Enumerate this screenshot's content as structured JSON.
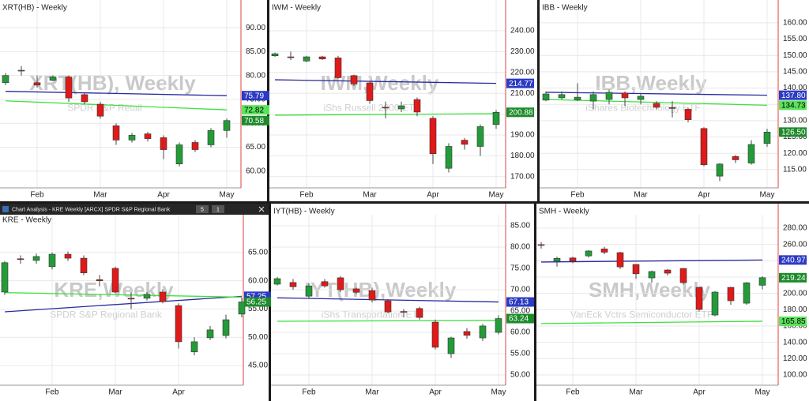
{
  "window": {
    "title": "Chart Analysis - KRE Weekly [ARCX] SPDR S&P Regional Bank",
    "buttons": [
      "5",
      "1"
    ]
  },
  "chart_data": [
    {
      "type": "candlestick",
      "title": "XRT(HB) - Weekly",
      "watermark": "XRT(HB), Weekly",
      "subtitle": "SPDR S&P Retail",
      "categories": [
        null,
        null,
        "Feb",
        null,
        null,
        null,
        "Mar",
        null,
        null,
        null,
        "Apr",
        null,
        null,
        null,
        "May"
      ],
      "open": [
        78.5,
        81,
        78.5,
        79,
        79.7,
        76,
        74,
        69.5,
        66.5,
        67.8,
        67,
        61.5,
        66,
        65.5,
        68.5
      ],
      "high": [
        80.5,
        82,
        80,
        80,
        80,
        76.5,
        74.5,
        70,
        68,
        68.2,
        67.5,
        66,
        66.5,
        69,
        71
      ],
      "low": [
        78,
        80,
        77.5,
        78.8,
        74.5,
        74,
        71,
        65.5,
        66,
        66.2,
        62.5,
        61,
        64,
        65,
        67
      ],
      "close": [
        80,
        81.1,
        78,
        79.7,
        75.3,
        74.5,
        71.5,
        66.5,
        67.5,
        66.8,
        64.5,
        65.5,
        64.5,
        68.5,
        70.58
      ],
      "up_color": "#239b38",
      "down_color": "#e01919",
      "lines": [
        {
          "color": "#2a2aa0",
          "x": [
            0,
            14
          ],
          "values": [
            76.7,
            75.79
          ]
        },
        {
          "color": "#3ee03e",
          "x": [
            0,
            14
          ],
          "values": [
            74.7,
            72.82
          ]
        }
      ],
      "tags": [
        {
          "value": 75.79,
          "label": "75.79",
          "color": "#2b3bc4",
          "text_color": "#ffffff"
        },
        {
          "value": 72.82,
          "label": "72.82",
          "color": "#5be35b",
          "text_color": "#000000"
        },
        {
          "value": 70.58,
          "label": "70.58",
          "color": "#1d8a2b",
          "text_color": "#ffffff"
        }
      ],
      "ylim": [
        56.5,
        95.8
      ],
      "yticks": [
        {
          "value": 90,
          "label": "90.00"
        },
        {
          "value": 85,
          "label": "85.00"
        },
        {
          "value": 80,
          "label": "80.00"
        },
        {
          "value": 75,
          "label": "75.00"
        },
        {
          "value": 70,
          "label": "70.00"
        },
        {
          "value": 65,
          "label": "65.00"
        },
        {
          "value": 60,
          "label": "60.00"
        }
      ],
      "grid": true
    },
    {
      "type": "candlestick",
      "title": "IWM - Weekly",
      "watermark": "IWM,Weekly",
      "subtitle": "iShs Russell 2000 ETF",
      "categories": [
        null,
        null,
        "Feb",
        null,
        null,
        null,
        "Mar",
        null,
        null,
        null,
        "Apr",
        null,
        null,
        null,
        "May"
      ],
      "open": [
        228,
        227.5,
        225.5,
        227.5,
        227,
        218.5,
        215,
        203.3,
        202.5,
        207,
        198,
        174,
        187.5,
        184.5,
        195
      ],
      "high": [
        229.5,
        230,
        228,
        228,
        228,
        219,
        216,
        206,
        206,
        208,
        199,
        186,
        188.5,
        195,
        202
      ],
      "low": [
        227.5,
        226,
        225,
        226,
        217,
        213.5,
        205,
        198,
        201,
        199,
        176,
        172,
        183,
        180,
        193
      ],
      "close": [
        229,
        227.3,
        227.5,
        226.5,
        217.5,
        214.5,
        206.5,
        203,
        204,
        201,
        181,
        184.5,
        185.5,
        194,
        200.88
      ],
      "up_color": "#239b38",
      "down_color": "#e01919",
      "lines": [
        {
          "color": "#2a2aa0",
          "x": [
            0,
            14
          ],
          "values": [
            216.5,
            214.77
          ]
        },
        {
          "color": "#3ee03e",
          "x": [
            0,
            14
          ],
          "values": [
            199.5,
            200.2
          ]
        }
      ],
      "tags": [
        {
          "value": 214.77,
          "label": "214.77",
          "color": "#2b3bc4",
          "text_color": "#ffffff"
        },
        {
          "value": 200.88,
          "label": "200.88",
          "color": "#1d8a2b",
          "text_color": "#ffffff"
        }
      ],
      "ylim": [
        164.6,
        254.8
      ],
      "yticks": [
        {
          "value": 240,
          "label": "240.00"
        },
        {
          "value": 230,
          "label": "230.00"
        },
        {
          "value": 220,
          "label": "220.00"
        },
        {
          "value": 210,
          "label": "210.00"
        },
        {
          "value": 200,
          "label": "200.00"
        },
        {
          "value": 190,
          "label": "190.00"
        },
        {
          "value": 180,
          "label": "180.00"
        },
        {
          "value": 170,
          "label": "170.00"
        }
      ],
      "grid": true
    },
    {
      "type": "candlestick",
      "title": "IBB - Weekly",
      "watermark": "IBB,Weekly",
      "subtitle": "iShares Biotechnology ETF",
      "categories": [
        null,
        null,
        "Feb",
        null,
        null,
        null,
        "Mar",
        null,
        null,
        null,
        "Apr",
        null,
        null,
        null,
        "May"
      ],
      "open": [
        136.3,
        137,
        136.4,
        136,
        136.5,
        138.5,
        136.5,
        135.3,
        134,
        133.5,
        127.6,
        113,
        119,
        117,
        123
      ],
      "high": [
        139,
        139,
        141.5,
        139,
        139.5,
        139,
        138.5,
        136,
        136,
        134,
        128,
        117,
        119.5,
        124,
        127.5
      ],
      "low": [
        136,
        136.5,
        136,
        133.5,
        135,
        134.5,
        135,
        133.5,
        131,
        129.5,
        116,
        111.5,
        117,
        116.5,
        122
      ],
      "close": [
        138.2,
        138,
        137.2,
        138,
        138.7,
        137,
        137.5,
        134.1,
        133.9,
        130.3,
        116.5,
        116.7,
        118,
        122.7,
        126.5
      ],
      "up_color": "#239b38",
      "down_color": "#e01919",
      "lines": [
        {
          "color": "#2a2aa0",
          "x": [
            0,
            14
          ],
          "values": [
            138.7,
            137.8
          ]
        },
        {
          "color": "#3ee03e",
          "x": [
            0,
            14
          ],
          "values": [
            136.5,
            134.73
          ]
        }
      ],
      "tags": [
        {
          "value": 137.8,
          "label": "137.80",
          "color": "#2b3bc4",
          "text_color": "#ffffff"
        },
        {
          "value": 134.73,
          "label": "134.73",
          "color": "#5be35b",
          "text_color": "#000000"
        },
        {
          "value": 126.5,
          "label": "126.50",
          "color": "#1d8a2b",
          "text_color": "#ffffff"
        }
      ],
      "ylim": [
        109.4,
        167
      ],
      "yticks": [
        {
          "value": 160,
          "label": "160.00"
        },
        {
          "value": 155,
          "label": "155.00"
        },
        {
          "value": 150,
          "label": "150.00"
        },
        {
          "value": 145,
          "label": "145.00"
        },
        {
          "value": 140,
          "label": "140.00"
        },
        {
          "value": 135,
          "label": "135.00"
        },
        {
          "value": 130,
          "label": "130.00"
        },
        {
          "value": 125,
          "label": "125.00"
        },
        {
          "value": 120,
          "label": "120.00"
        },
        {
          "value": 115,
          "label": "115.00"
        }
      ],
      "grid": true
    },
    {
      "type": "candlestick",
      "title": "KRE - Weekly",
      "watermark": "KRE,Weekly",
      "subtitle": "SPDR S&P Regional Bank",
      "categories": [
        null,
        null,
        null,
        "Feb",
        null,
        null,
        null,
        "Mar",
        null,
        null,
        null,
        "Apr",
        null,
        null,
        null,
        null
      ],
      "open": [
        58,
        63.9,
        63.6,
        62.5,
        64.7,
        64,
        60.2,
        62.2,
        56.9,
        56.9,
        58,
        55.6,
        47.4,
        49.9,
        50.3,
        54.1
      ],
      "high": [
        63.5,
        64.5,
        64.8,
        65,
        65.2,
        64.5,
        61,
        62.5,
        58,
        58,
        58.5,
        56,
        50,
        52,
        54,
        57
      ],
      "low": [
        57.5,
        63,
        63,
        62,
        63.5,
        61,
        59,
        57.8,
        55,
        56.5,
        56,
        48,
        46.8,
        49.5,
        49.8,
        53.5
      ],
      "close": [
        63.2,
        63.8,
        64.3,
        64.7,
        64,
        61.4,
        60,
        58,
        56.8,
        57.6,
        56.3,
        49.2,
        49.2,
        51.3,
        53.1,
        56.25
      ],
      "up_color": "#239b38",
      "down_color": "#e01919",
      "lines": [
        {
          "color": "#2a2aa0",
          "x": [
            0,
            15
          ],
          "values": [
            54.5,
            57.25
          ]
        },
        {
          "color": "#3ee03e",
          "x": [
            0,
            15
          ],
          "values": [
            57.9,
            57.1
          ]
        }
      ],
      "tags": [
        {
          "value": 57.25,
          "label": "57.25",
          "color": "#2b3bc4",
          "text_color": "#ffffff"
        },
        {
          "value": 56.25,
          "label": "56.25",
          "color": "#1d8a2b",
          "text_color": "#ffffff"
        }
      ],
      "ylim": [
        41.5,
        71.7
      ],
      "yticks": [
        {
          "value": 65,
          "label": "65.00"
        },
        {
          "value": 60,
          "label": "60.00"
        },
        {
          "value": 55,
          "label": "55.00"
        },
        {
          "value": 50,
          "label": "50.00"
        },
        {
          "value": 45,
          "label": "45.00"
        }
      ],
      "grid": true
    },
    {
      "type": "candlestick",
      "title": "IYT(HB) - Weekly",
      "watermark": "IYT(HB),Weekly",
      "subtitle": "iShs Transportation ETF",
      "categories": [
        null,
        null,
        "Feb",
        null,
        null,
        null,
        "Mar",
        null,
        null,
        null,
        "Apr",
        null,
        null,
        null,
        "May"
      ],
      "open": [
        71.3,
        71.7,
        68.5,
        71.9,
        72.8,
        70.2,
        69.8,
        67.4,
        64.9,
        65.6,
        62.4,
        55,
        60.2,
        58.7,
        60
      ],
      "high": [
        73,
        72.5,
        71.5,
        72.5,
        73.2,
        70.5,
        70.5,
        67.8,
        65.5,
        66,
        63,
        59,
        61,
        62,
        64
      ],
      "low": [
        71,
        70,
        68,
        70.5,
        69.5,
        69,
        67,
        64.5,
        63.5,
        63,
        56,
        54,
        58.5,
        58,
        59.5
      ],
      "close": [
        72.6,
        70.7,
        70.9,
        70.9,
        70,
        69.4,
        67.6,
        64.8,
        64.8,
        63.5,
        56.5,
        58.7,
        59.3,
        61.5,
        63.24
      ],
      "up_color": "#239b38",
      "down_color": "#e01919",
      "lines": [
        {
          "color": "#2a2aa0",
          "x": [
            0,
            14
          ],
          "values": [
            68.1,
            67.13
          ]
        },
        {
          "color": "#3ee03e",
          "x": [
            0,
            14
          ],
          "values": [
            62.6,
            62.8
          ]
        }
      ],
      "tags": [
        {
          "value": 67.13,
          "label": "67.13",
          "color": "#2b3bc4",
          "text_color": "#ffffff"
        },
        {
          "value": 63.24,
          "label": "63.24",
          "color": "#1d8a2b",
          "text_color": "#ffffff"
        }
      ],
      "ylim": [
        47.6,
        87.6
      ],
      "yticks": [
        {
          "value": 85,
          "label": "85.00"
        },
        {
          "value": 80,
          "label": "80.00"
        },
        {
          "value": 75,
          "label": "75.00"
        },
        {
          "value": 70,
          "label": "70.00"
        },
        {
          "value": 65,
          "label": "65.00"
        },
        {
          "value": 60,
          "label": "60.00"
        },
        {
          "value": 55,
          "label": "55.00"
        },
        {
          "value": 50,
          "label": "50.00"
        }
      ],
      "grid": true
    },
    {
      "type": "candlestick",
      "title": "SMH - Weekly",
      "watermark": "SMH,Weekly",
      "subtitle": "VanEck Vctrs Semiconductor ETF",
      "categories": [
        null,
        null,
        "Feb",
        null,
        null,
        null,
        "Mar",
        null,
        null,
        null,
        "Apr",
        null,
        null,
        null,
        "May"
      ],
      "open": [
        259.8,
        239.5,
        243.5,
        246,
        254.5,
        250,
        235.5,
        219,
        228.7,
        230.6,
        207.4,
        173.5,
        207.4,
        188,
        210
      ],
      "high": [
        263,
        245,
        245,
        253,
        257,
        251,
        236,
        228,
        230,
        231,
        208,
        203,
        208,
        214,
        221
      ],
      "low": [
        255,
        233,
        237,
        244,
        248,
        230,
        218,
        213,
        222,
        211,
        178,
        172,
        186,
        186,
        205
      ],
      "close": [
        259.5,
        243,
        239.5,
        252,
        250.5,
        232.5,
        224,
        226.8,
        224.8,
        213.2,
        180.3,
        201.6,
        191,
        213,
        219.24
      ],
      "up_color": "#239b38",
      "down_color": "#e01919",
      "lines": [
        {
          "color": "#2a2aa0",
          "x": [
            0,
            14
          ],
          "values": [
            238.5,
            240.97
          ]
        },
        {
          "color": "#3ee03e",
          "x": [
            0,
            14
          ],
          "values": [
            163,
            165.85
          ]
        }
      ],
      "tags": [
        {
          "value": 240.97,
          "label": "240.97",
          "color": "#2b3bc4",
          "text_color": "#ffffff"
        },
        {
          "value": 219.24,
          "label": "219.24",
          "color": "#1d8a2b",
          "text_color": "#ffffff"
        },
        {
          "value": 165.85,
          "label": "165.85",
          "color": "#5be35b",
          "text_color": "#000000"
        }
      ],
      "ylim": [
        87.4,
        296.5
      ],
      "yticks": [
        {
          "value": 280,
          "label": "280.00"
        },
        {
          "value": 260,
          "label": "260.00"
        },
        {
          "value": 240,
          "label": "240.00"
        },
        {
          "value": 220,
          "label": "220.00"
        },
        {
          "value": 200,
          "label": "200.00"
        },
        {
          "value": 180,
          "label": "180.00"
        },
        {
          "value": 160,
          "label": "160.00"
        },
        {
          "value": 140,
          "label": "140.00"
        },
        {
          "value": 120,
          "label": "120.00"
        },
        {
          "value": 100,
          "label": "100.00"
        }
      ],
      "grid": true
    }
  ]
}
